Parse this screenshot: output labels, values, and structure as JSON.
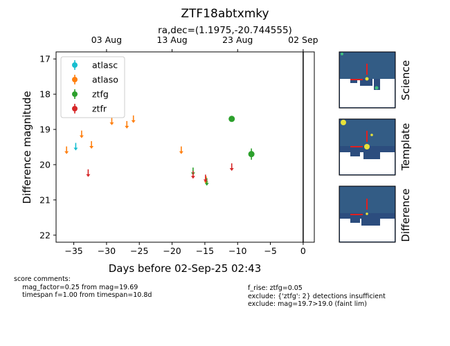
{
  "chart_data": {
    "type": "scatter",
    "title": "ZTF18abtxmky",
    "subtitle": "ra,dec=(1.1975,-20.744555)",
    "xlabel": "Days before 02-Sep-25 02:43",
    "ylabel": "Difference magnitude",
    "xlim": [
      -37.7,
      1.7
    ],
    "ylim": [
      22.2,
      16.8
    ],
    "y_inverted": true,
    "x_ticks": [
      -35,
      -30,
      -25,
      -20,
      -15,
      -10,
      -5,
      0
    ],
    "x_tick_labels": [
      "−35",
      "−30",
      "−25",
      "−20",
      "−15",
      "−10",
      "−5",
      "0"
    ],
    "y_ticks": [
      17,
      18,
      19,
      20,
      21,
      22
    ],
    "y_tick_labels": [
      "17",
      "18",
      "19",
      "20",
      "21",
      "22"
    ],
    "top_axis": {
      "ticks": [
        -30,
        -20,
        -10,
        0
      ],
      "labels": [
        "03 Aug",
        "13 Aug",
        "23 Aug",
        "02 Sep"
      ]
    },
    "vline_x": 0,
    "legend_position": "upper-left",
    "series": [
      {
        "name": "atlasc",
        "color": "#17becf",
        "points": [
          {
            "x": -34.7,
            "y": 19.5,
            "limit": true
          }
        ]
      },
      {
        "name": "atlaso",
        "color": "#ff7f0e",
        "points": [
          {
            "x": -36.1,
            "y": 19.6,
            "limit": true
          },
          {
            "x": -33.8,
            "y": 19.15,
            "limit": true
          },
          {
            "x": -32.3,
            "y": 19.45,
            "limit": true
          },
          {
            "x": -29.2,
            "y": 18.78,
            "limit": true
          },
          {
            "x": -26.9,
            "y": 18.88,
            "limit": true
          },
          {
            "x": -25.9,
            "y": 18.72,
            "limit": true
          },
          {
            "x": -18.6,
            "y": 19.6,
            "limit": true
          },
          {
            "x": -14.8,
            "y": 20.45,
            "limit": true
          }
        ]
      },
      {
        "name": "ztfg",
        "color": "#2ca02c",
        "points": [
          {
            "x": -16.8,
            "y": 20.2,
            "limit": true
          },
          {
            "x": -14.7,
            "y": 20.5,
            "limit": true
          },
          {
            "x": -10.9,
            "y": 18.7,
            "limit": false,
            "err": 0.05
          },
          {
            "x": -7.9,
            "y": 19.7,
            "limit": false,
            "err": 0.16
          }
        ]
      },
      {
        "name": "ztfr",
        "color": "#d62728",
        "points": [
          {
            "x": -32.8,
            "y": 20.25,
            "limit": true
          },
          {
            "x": -16.8,
            "y": 20.3,
            "limit": true
          },
          {
            "x": -14.9,
            "y": 20.4,
            "limit": true
          },
          {
            "x": -10.9,
            "y": 20.08,
            "limit": true
          }
        ]
      }
    ]
  },
  "stamps": [
    {
      "label": "Science"
    },
    {
      "label": "Template"
    },
    {
      "label": "Difference"
    }
  ],
  "comments": {
    "left": "score comments:\n    mag_factor=0.25 from mag=19.69\n    timespan f=1.00 from timespan=10.8d",
    "right": "f_rise: ztfg=0.05\nexclude: {'ztfg': 2} detections insufficient\nexclude: mag=19.7>19.0 (faint lim)"
  }
}
